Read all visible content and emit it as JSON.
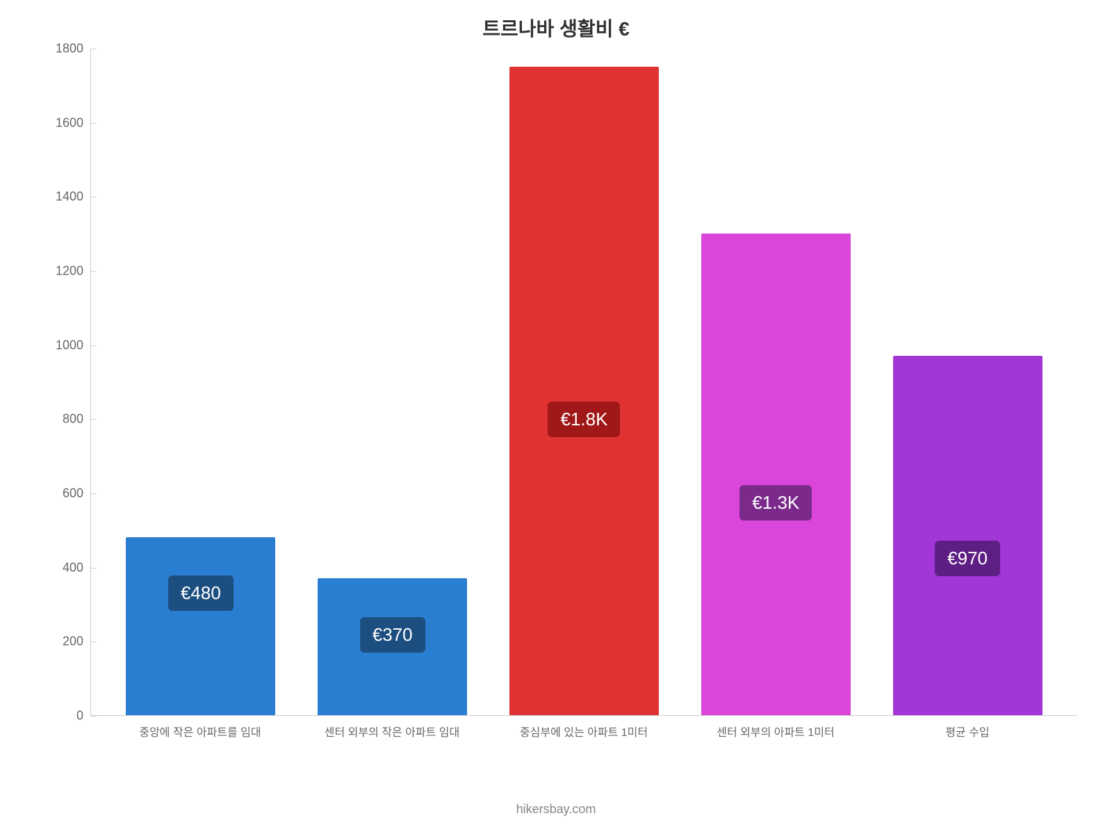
{
  "chart": {
    "type": "bar",
    "title": "트르나바 생활비 €",
    "title_fontsize": 28,
    "title_color": "#333333",
    "background_color": "#ffffff",
    "axis_line_color": "#cccccc",
    "ylim": [
      0,
      1800
    ],
    "ytick_step": 200,
    "yticks": [
      {
        "value": 0,
        "label": "0"
      },
      {
        "value": 200,
        "label": "200"
      },
      {
        "value": 400,
        "label": "400"
      },
      {
        "value": 600,
        "label": "600"
      },
      {
        "value": 800,
        "label": "800"
      },
      {
        "value": 1000,
        "label": "1000"
      },
      {
        "value": 1200,
        "label": "1200"
      },
      {
        "value": 1400,
        "label": "1400"
      },
      {
        "value": 1600,
        "label": "1600"
      },
      {
        "value": 1800,
        "label": "1800"
      }
    ],
    "ytick_fontsize": 18,
    "ytick_color": "#666666",
    "xtick_fontsize": 16,
    "xtick_color": "#666666",
    "bar_width_ratio": 0.78,
    "badge_fontsize": 26,
    "badge_text_color": "#ffffff",
    "badge_border_radius": 6,
    "bars": [
      {
        "category": "중앙에 작은 아파트를 임대",
        "value": 480,
        "display_label": "€480",
        "bar_color": "#2a7ed2",
        "badge_color": "#1c4e80",
        "badge_offset_from_bottom": 150
      },
      {
        "category": "센터 외부의 작은 아파트 임대",
        "value": 370,
        "display_label": "€370",
        "bar_color": "#2a7ed2",
        "badge_color": "#1c4e80",
        "badge_offset_from_bottom": 90
      },
      {
        "category": "중심부에 있는 아파트 1미터",
        "value": 1750,
        "display_label": "€1.8K",
        "bar_color": "#e03232",
        "badge_color": "#a01818",
        "badge_offset_from_bottom": 400
      },
      {
        "category": "센터 외부의 아파트 1미터",
        "value": 1300,
        "display_label": "€1.3K",
        "bar_color": "#d946d9",
        "badge_color": "#7b2a8c",
        "badge_offset_from_bottom": 280
      },
      {
        "category": "평균 수입",
        "value": 970,
        "display_label": "€970",
        "bar_color": "#a236d6",
        "badge_color": "#5e1f85",
        "badge_offset_from_bottom": 200
      }
    ]
  },
  "footer": {
    "credit": "hikersbay.com",
    "credit_color": "#888888",
    "credit_fontsize": 18
  }
}
